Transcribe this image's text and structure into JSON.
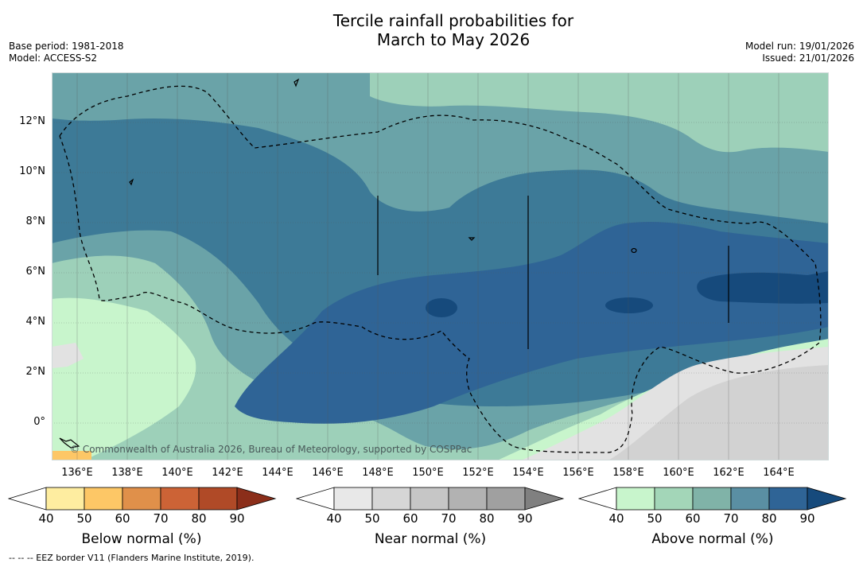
{
  "header": {
    "title_line1": "Tercile rainfall probabilities for",
    "title_line2": "March to May 2026",
    "base_period": "Base period: 1981-2018",
    "model": "Model: ACCESS-S2",
    "model_run": "Model run: 19/01/2026",
    "issued": "Issued: 21/01/2026"
  },
  "map": {
    "lat_labels": [
      "12°N",
      "10°N",
      "8°N",
      "6°N",
      "4°N",
      "2°N",
      "0°"
    ],
    "lon_labels": [
      "136°E",
      "138°E",
      "140°E",
      "142°E",
      "144°E",
      "146°E",
      "148°E",
      "150°E",
      "152°E",
      "154°E",
      "156°E",
      "158°E",
      "160°E",
      "162°E",
      "164°E"
    ],
    "copyright": "© Commonwealth of Australia 2026, Bureau of Meteorology, supported by COSPPac",
    "ocean_color": "#3d7a97",
    "land_outline_color": "#000000"
  },
  "legend": {
    "below": {
      "label": "Below normal (%)",
      "colors": [
        "#ffffff",
        "#feeda0",
        "#fdc766",
        "#e0904a",
        "#cc6336",
        "#b04a27",
        "#8b2e1a"
      ]
    },
    "near": {
      "label": "Near normal (%)",
      "colors": [
        "#ffffff",
        "#e8e8e8",
        "#d6d6d6",
        "#c6c6c6",
        "#b2b2b2",
        "#a0a0a0",
        "#808080"
      ]
    },
    "above": {
      "label": "Above normal (%)",
      "colors": [
        "#ffffff",
        "#c8f5cc",
        "#a3d6b8",
        "#80b3a8",
        "#5a8fa3",
        "#2f6496",
        "#164a7c"
      ]
    },
    "ticks": [
      "40",
      "50",
      "60",
      "70",
      "80",
      "90"
    ]
  },
  "footnote": "-- -- -- EEZ border V11 (Flanders Marine Institute, 2019)."
}
